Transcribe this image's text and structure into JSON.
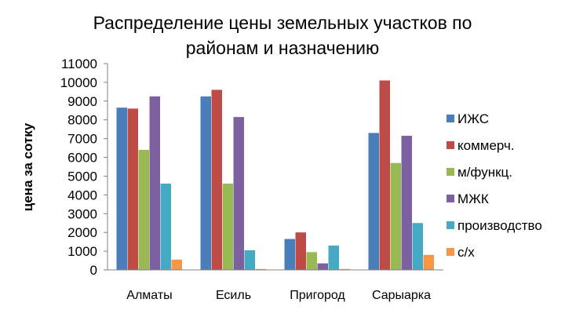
{
  "chart_data": {
    "type": "bar",
    "title_lines": [
      "Распределение цены земельных участков по",
      "районам и назначению"
    ],
    "xlabel": "",
    "ylabel": "цена за сотку",
    "ylim": [
      0,
      11000
    ],
    "ytick_step": 1000,
    "grid": false,
    "legend_position": "right",
    "categories": [
      "Алматы",
      "Есиль",
      "Пригород",
      "Сарыарка"
    ],
    "series": [
      {
        "name": "ИЖС",
        "color": "#4a7ebb",
        "values": [
          8650,
          9250,
          1650,
          7300
        ]
      },
      {
        "name": "коммерч.",
        "color": "#be4b48",
        "values": [
          8600,
          9600,
          2000,
          10100
        ]
      },
      {
        "name": "м/функц.",
        "color": "#98b954",
        "values": [
          6400,
          4600,
          950,
          5700
        ]
      },
      {
        "name": "МЖК",
        "color": "#7d60a0",
        "values": [
          9250,
          8150,
          350,
          7150
        ]
      },
      {
        "name": "производство",
        "color": "#46aac5",
        "values": [
          4600,
          1050,
          1300,
          2500
        ]
      },
      {
        "name": "с/х",
        "color": "#f79646",
        "values": [
          550,
          50,
          50,
          800
        ]
      }
    ]
  }
}
